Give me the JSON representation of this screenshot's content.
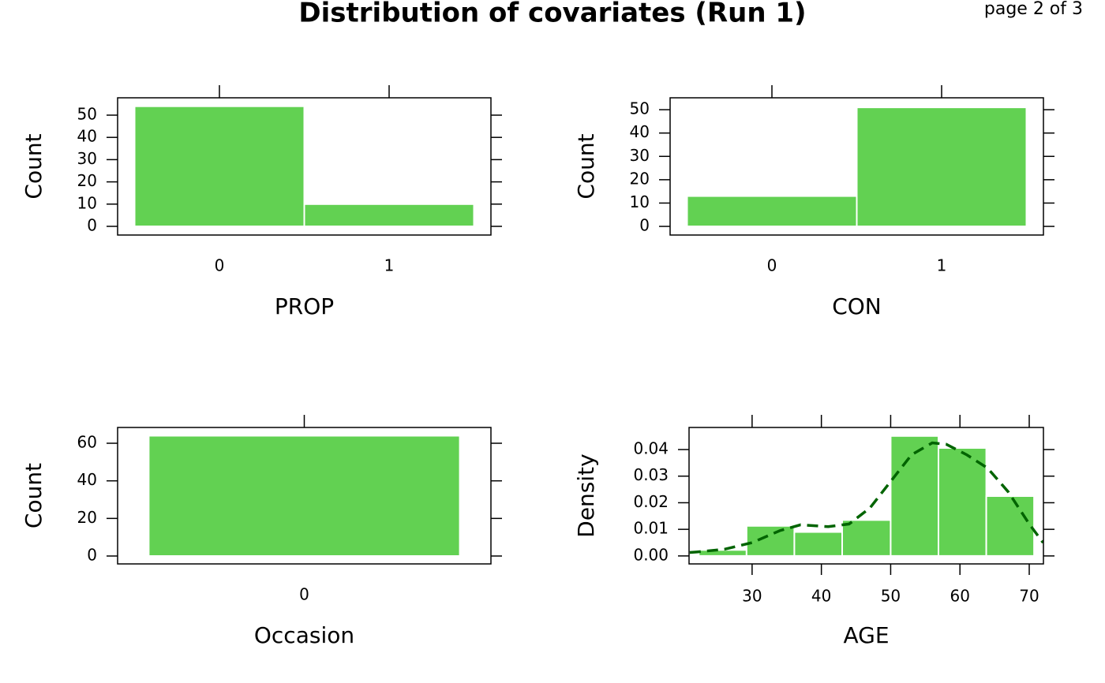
{
  "title": "Distribution of covariates (Run 1)",
  "page_label": "page 2 of 3",
  "chart_data": [
    {
      "type": "bar",
      "xlabel": "PROP",
      "ylabel": "Count",
      "categories": [
        "0",
        "1"
      ],
      "values": [
        54,
        10
      ],
      "color": "#62d152",
      "ylim": [
        -3.9,
        57.8
      ],
      "yticks": [
        0,
        10,
        20,
        30,
        40,
        50
      ]
    },
    {
      "type": "bar",
      "xlabel": "CON",
      "ylabel": "Count",
      "categories": [
        "0",
        "1"
      ],
      "values": [
        13,
        51
      ],
      "color": "#62d152",
      "ylim": [
        -3.7,
        55.1
      ],
      "yticks": [
        0,
        10,
        20,
        30,
        40,
        50
      ]
    },
    {
      "type": "bar",
      "xlabel": "Occasion",
      "ylabel": "Count",
      "categories": [
        "0"
      ],
      "values": [
        64
      ],
      "color": "#62d152",
      "ylim": [
        -4.2,
        68.4
      ],
      "yticks": [
        0,
        20,
        40,
        60
      ]
    },
    {
      "type": "histogram",
      "xlabel": "AGE",
      "ylabel": "Density",
      "bins": [
        22.3,
        29.2,
        36.1,
        43.0,
        50.0,
        56.9,
        63.8,
        70.7
      ],
      "values": [
        0.00225,
        0.0113,
        0.009,
        0.0135,
        0.0451,
        0.0406,
        0.0225
      ],
      "color": "#62d152",
      "line": {
        "x": [
          21,
          22,
          26,
          30,
          34,
          37,
          41,
          44,
          47,
          50,
          53,
          56,
          58,
          61,
          64,
          67,
          70,
          72
        ],
        "values": [
          0.0013,
          0.0015,
          0.0025,
          0.005,
          0.0095,
          0.0117,
          0.011,
          0.012,
          0.018,
          0.028,
          0.038,
          0.0425,
          0.042,
          0.038,
          0.033,
          0.024,
          0.012,
          0.005
        ],
        "color": "#006400",
        "style": "dashed"
      },
      "xlim": [
        20.9,
        72.05
      ],
      "xticks": [
        30,
        40,
        50,
        60,
        70
      ],
      "ylim": [
        -0.003,
        0.0483
      ],
      "yticks": [
        {
          "value": 0,
          "label": "0.00"
        },
        0.01,
        0.02,
        0.03,
        0.04
      ]
    }
  ]
}
